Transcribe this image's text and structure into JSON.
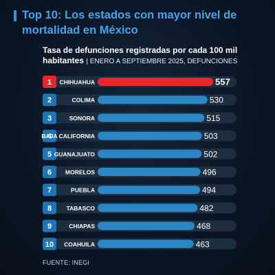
{
  "header": {
    "title": "Top 10: Los estados con mayor nivel de mortalidad en México",
    "subtitle_main": "Tasa de defunciones registradas por cada 100 mil habitantes",
    "subtitle_detail": "| ENERO A SEPTIEMBRE 2025, DEFUNCIONES"
  },
  "footer": {
    "source": "FUENTE: INEGI"
  },
  "colors": {
    "highlight": "#e8272c",
    "bar": "#2a86c4",
    "track": "#1d2e40",
    "badge_blue": "#1f74b3",
    "badge_red": "#e8272c"
  },
  "chart_data": {
    "type": "bar",
    "orientation": "horizontal",
    "ranks": [
      "1",
      "2",
      "3",
      "4",
      "5",
      "6",
      "7",
      "8",
      "9",
      "10"
    ],
    "categories": [
      "CHIHUAHUA",
      "COLIMA",
      "SONORA",
      "BAJA CALIFORNIA",
      "GUANAJUATO",
      "MORELOS",
      "PUEBLA",
      "TABASCO",
      "CHIAPAS",
      "COAHUILA"
    ],
    "values": [
      557,
      530,
      515,
      503,
      502,
      496,
      494,
      482,
      468,
      463
    ],
    "highlight_index": 0,
    "xlim": [
      0,
      557
    ]
  }
}
